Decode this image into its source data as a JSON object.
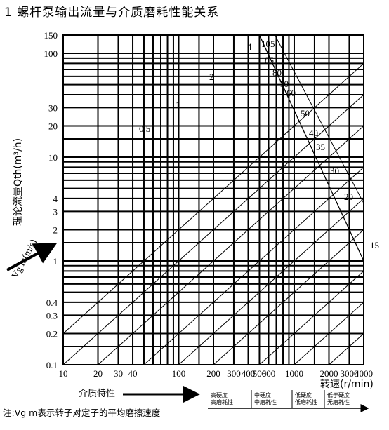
{
  "page_title": "1   螺杆泵输出流量与介质磨耗性能关系",
  "chart_data": {
    "type": "line",
    "ylabel": "理论流量Qth(m³/h)",
    "xlabel": "转速(r/min)",
    "y_ticks": [
      "0.1",
      "0.2",
      "0.3",
      "0.4",
      "1",
      "2",
      "3",
      "4",
      "10",
      "20",
      "30",
      "100",
      "150"
    ],
    "x_ticks": [
      "10",
      "20",
      "30",
      "40",
      "100",
      "200",
      "300",
      "400",
      "500",
      "600",
      "1000",
      "2000",
      "3000",
      "4000"
    ],
    "xlim": [
      10,
      4000
    ],
    "ylim": [
      0.1,
      150
    ],
    "x_scale": "log",
    "y_scale": "log",
    "curve_labels": [
      "0.5",
      "1",
      "2",
      "4"
    ],
    "boundary_labels": [
      "15",
      "20",
      "30",
      "35",
      "40",
      "50",
      "60",
      "70",
      "80",
      "85",
      "105"
    ],
    "velocity_label": "Vg m(m/s)",
    "medium_label": "介质特性",
    "medium_categories": [
      "高硬度\n高磨耗性",
      "中硬度\n中磨耗性",
      "低硬度\n低磨耗性",
      "低于硬度\n无磨耗性"
    ],
    "note": "注:Vg m表示转子对定子的平均磨擦速度"
  }
}
